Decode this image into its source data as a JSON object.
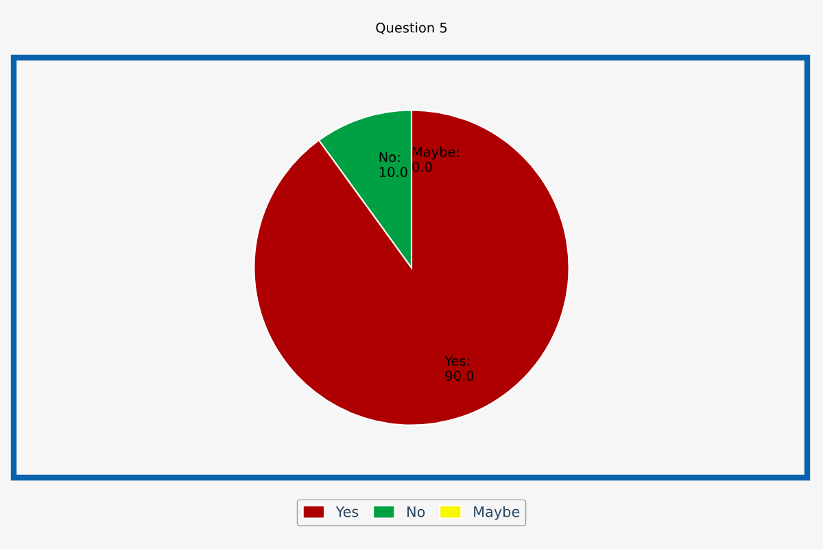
{
  "chart_data": {
    "type": "pie",
    "title": "Question 5",
    "categories": [
      "Yes",
      "No",
      "Maybe"
    ],
    "values": [
      90,
      10,
      0
    ],
    "colors": [
      "#ae0000",
      "#00a045",
      "#f7f700"
    ],
    "value_labels": [
      "Yes:\n90.0",
      "No:\n10.0",
      "Maybe:\n0.0"
    ],
    "legend": "bottom"
  }
}
